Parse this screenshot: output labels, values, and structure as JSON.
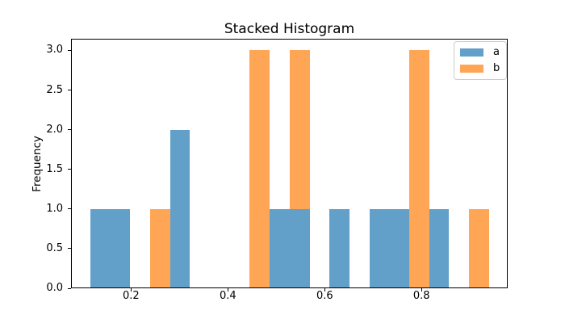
{
  "figure": {
    "title": "Stacked Histogram",
    "ylabel": "Frequency",
    "background": "#ffffff"
  },
  "legend": {
    "position": "upper right",
    "entries": [
      {
        "label": "a",
        "color": "#62A0CA"
      },
      {
        "label": "b",
        "color": "#FFA556"
      }
    ]
  },
  "chart_data": {
    "type": "bar",
    "subtype": "stacked-histogram",
    "title": "Stacked Histogram",
    "xlabel": "",
    "ylabel": "Frequency",
    "grid": false,
    "legend_position": "upper right",
    "bin_edges": [
      0.1155,
      0.1567,
      0.1979,
      0.2391,
      0.2803,
      0.3215,
      0.3627,
      0.4039,
      0.4451,
      0.4863,
      0.5275,
      0.5687,
      0.6099,
      0.6511,
      0.6923,
      0.7335,
      0.7747,
      0.8159,
      0.8571,
      0.8983,
      0.9395
    ],
    "series": [
      {
        "name": "a",
        "color": "#62A0CA",
        "counts": [
          1,
          1,
          0,
          0,
          2,
          0,
          0,
          0,
          0,
          1,
          1,
          0,
          1,
          0,
          1,
          1,
          0,
          1,
          0,
          0
        ]
      },
      {
        "name": "b",
        "color": "#FFA556",
        "counts": [
          0,
          0,
          0,
          1,
          0,
          0,
          0,
          0,
          3,
          0,
          2,
          0,
          0,
          0,
          0,
          0,
          3,
          0,
          0,
          1
        ]
      }
    ],
    "xlim": [
      0.076,
      0.978
    ],
    "ylim": [
      0,
      3.147
    ],
    "x_ticks": [
      0.2,
      0.4,
      0.6,
      0.8
    ],
    "x_tick_labels": [
      "0.2",
      "0.4",
      "0.6",
      "0.8"
    ],
    "y_ticks": [
      0.0,
      0.5,
      1.0,
      1.5,
      2.0,
      2.5,
      3.0
    ],
    "y_tick_labels": [
      "0.0",
      "0.5",
      "1.0",
      "1.5",
      "2.0",
      "2.5",
      "3.0"
    ]
  }
}
